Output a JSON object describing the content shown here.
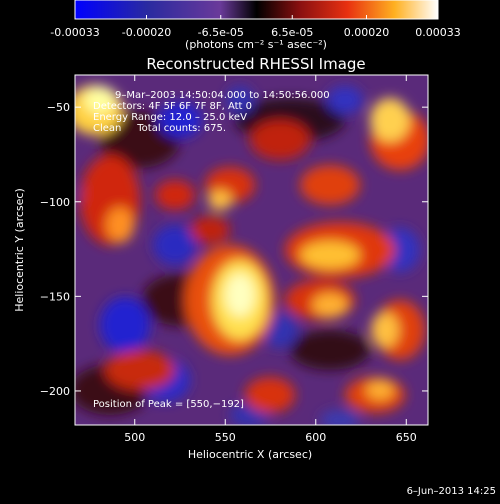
{
  "colorbar": {
    "tick_labels": [
      "-0.00033",
      "-0.00020",
      "-6.5e-05",
      "6.5e-05",
      "0.00020",
      "0.00033"
    ],
    "tick_values": [
      -0.00033,
      -0.0002,
      -6.5e-05,
      6.5e-05,
      0.0002,
      0.00033
    ],
    "range": [
      -0.00033,
      0.00033
    ],
    "units_label": "(photons cm⁻² s⁻¹ asec⁻²)",
    "colors": [
      "#1a1aff",
      "#3a2a9a",
      "#6a3aaa",
      "#ffffff"
    ]
  },
  "chart_data": {
    "type": "heatmap",
    "title": "Reconstructed RHESSI Image",
    "xlabel": "Heliocentric X (arcsec)",
    "ylabel": "Heliocentric Y (arcsec)",
    "xlim": [
      467,
      662
    ],
    "ylim": [
      -218,
      -33
    ],
    "x_ticks": [
      500,
      550,
      600,
      650
    ],
    "y_ticks": [
      -50,
      -100,
      -150,
      -200
    ],
    "x_tick_labels": [
      "500",
      "550",
      "600",
      "650"
    ],
    "y_tick_labels": [
      "−50",
      "−100",
      "−150",
      "−200"
    ],
    "peak_position": [
      550,
      -192
    ],
    "colormap": "blue-white-red (RHESSI)"
  },
  "annotations": {
    "time": "9–Mar–2003 14:50:04.000 to 14:50:56.000",
    "detectors": "Detectors: 4F 5F 6F 7F 8F, Att 0",
    "energy": "Energy Range: 12.0 – 25.0 keV",
    "method_counts": "Clean     Total counts: 675.",
    "peak": "Position of Peak = [550,−192]"
  },
  "footer": {
    "date": "6–Jun–2013 14:25"
  }
}
